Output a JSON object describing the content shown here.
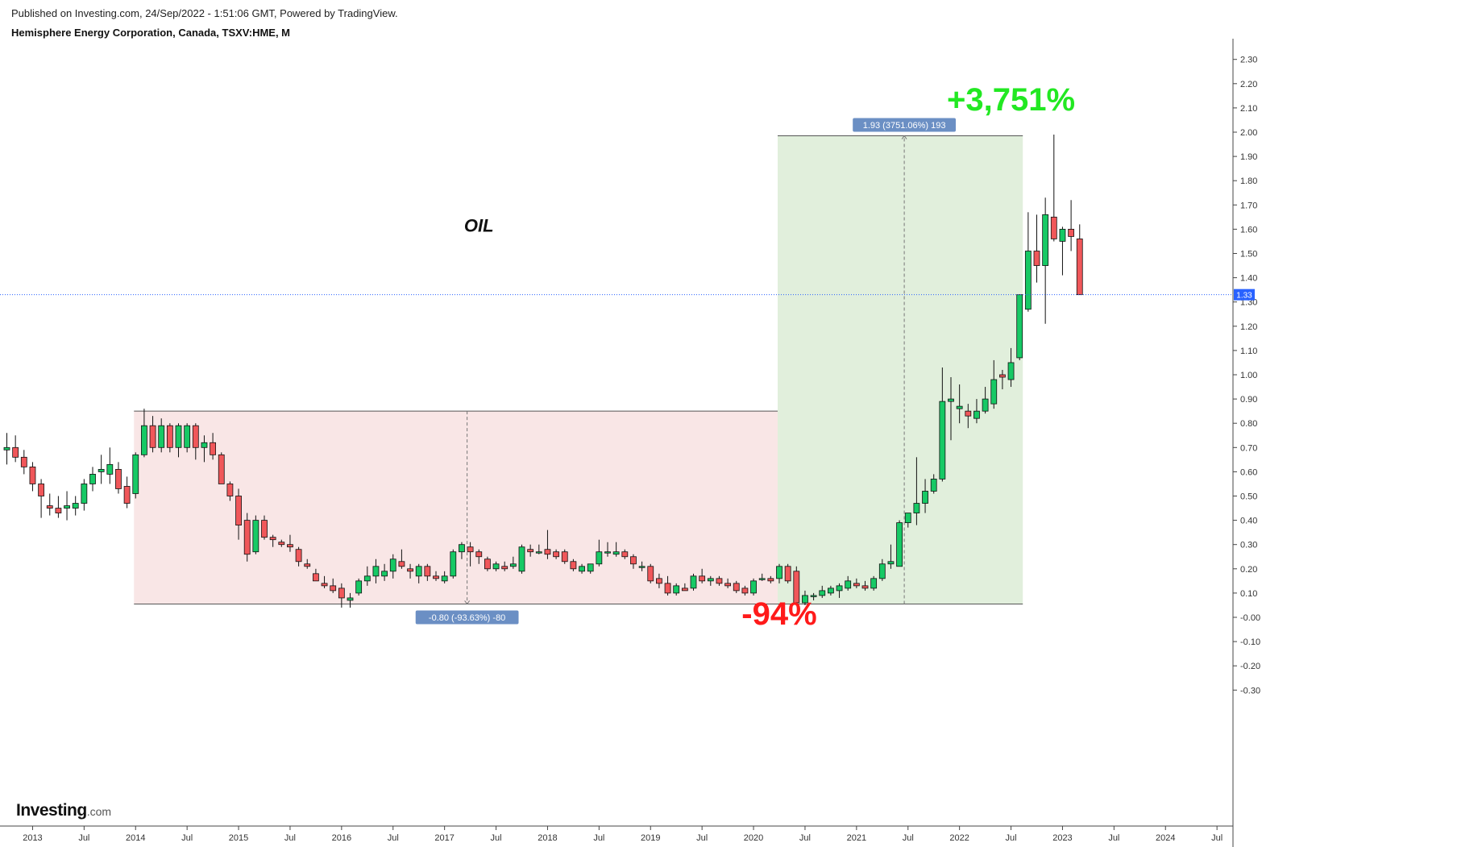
{
  "header": {
    "published": "Published on Investing.com, 24/Sep/2022 - 1:51:06 GMT, Powered by TradingView.",
    "symbol": "Hemisphere Energy Corporation, Canada, TSXV:HME, M"
  },
  "logo": {
    "main": "Investing",
    "suffix": ".com"
  },
  "chart_data": {
    "type": "candlestick",
    "x_axis": {
      "unit": "month",
      "start": "2012-10",
      "ticks": [
        "2013",
        "Jul",
        "2014",
        "Jul",
        "2015",
        "Jul",
        "2016",
        "Jul",
        "2017",
        "Jul",
        "2018",
        "Jul",
        "2019",
        "Jul",
        "2020",
        "Jul",
        "2021",
        "Jul",
        "2022",
        "Jul",
        "2023",
        "Jul",
        "2024",
        "Jul"
      ]
    },
    "y_axis": {
      "ylim": [
        -0.35,
        2.35
      ],
      "ticks": [
        "2.30",
        "2.20",
        "2.10",
        "2.00",
        "1.90",
        "1.80",
        "1.70",
        "1.60",
        "1.50",
        "1.40",
        "1.30",
        "1.20",
        "1.10",
        "1.00",
        "0.90",
        "0.80",
        "0.70",
        "0.60",
        "0.50",
        "0.40",
        "0.30",
        "0.20",
        "0.10",
        "-0.00",
        "-0.10",
        "-0.20",
        "-0.30"
      ]
    },
    "last_price": {
      "value": 1.33,
      "label": "1.33",
      "color": "#2962ff"
    },
    "colors": {
      "up": "#17c965",
      "down": "#f0575a",
      "decline_zone": "#f9e6e6",
      "rise_zone": "#e1efdc",
      "plus_text": "#22e822",
      "minus_text": "#ff1a1a",
      "measure_label_bg": "#6b8fc4"
    },
    "measurements": [
      {
        "label": "-0.80 (-93.63%) -80",
        "from_date": "2014-01",
        "to_date": "2020-04",
        "from_price": 0.85,
        "to_price": 0.055,
        "zone": "decline"
      },
      {
        "label": "1.93 (3751.06%) 193",
        "from_date": "2020-04",
        "to_date": "2022-08",
        "from_price": 0.055,
        "to_price": 1.985,
        "zone": "rise"
      }
    ],
    "annotations": [
      {
        "text": "OIL",
        "x_date": "2017-05",
        "y": 1.59
      },
      {
        "text": "+3,751%",
        "x_date": "2022-07",
        "y": 2.09
      },
      {
        "text": "-94%",
        "x_date": "2020-04",
        "y": -0.03
      }
    ],
    "candles": [
      [
        "2012-10",
        0.69,
        0.76,
        0.63,
        0.7
      ],
      [
        "2012-11",
        0.7,
        0.75,
        0.64,
        0.66
      ],
      [
        "2012-12",
        0.66,
        0.69,
        0.59,
        0.62
      ],
      [
        "2013-01",
        0.62,
        0.64,
        0.52,
        0.55
      ],
      [
        "2013-02",
        0.55,
        0.57,
        0.41,
        0.5
      ],
      [
        "2013-03",
        0.46,
        0.51,
        0.42,
        0.45
      ],
      [
        "2013-04",
        0.45,
        0.5,
        0.41,
        0.43
      ],
      [
        "2013-05",
        0.45,
        0.52,
        0.4,
        0.46
      ],
      [
        "2013-06",
        0.45,
        0.5,
        0.42,
        0.47
      ],
      [
        "2013-07",
        0.47,
        0.57,
        0.44,
        0.55
      ],
      [
        "2013-08",
        0.55,
        0.62,
        0.52,
        0.59
      ],
      [
        "2013-09",
        0.6,
        0.67,
        0.55,
        0.61
      ],
      [
        "2013-10",
        0.59,
        0.7,
        0.55,
        0.63
      ],
      [
        "2013-11",
        0.61,
        0.64,
        0.51,
        0.53
      ],
      [
        "2013-12",
        0.54,
        0.58,
        0.45,
        0.47
      ],
      [
        "2014-01",
        0.51,
        0.68,
        0.49,
        0.67
      ],
      [
        "2014-02",
        0.67,
        0.86,
        0.66,
        0.79
      ],
      [
        "2014-03",
        0.79,
        0.83,
        0.68,
        0.7
      ],
      [
        "2014-04",
        0.7,
        0.82,
        0.68,
        0.79
      ],
      [
        "2014-05",
        0.79,
        0.8,
        0.68,
        0.7
      ],
      [
        "2014-06",
        0.7,
        0.8,
        0.66,
        0.79
      ],
      [
        "2014-07",
        0.7,
        0.8,
        0.68,
        0.79
      ],
      [
        "2014-08",
        0.79,
        0.8,
        0.65,
        0.7
      ],
      [
        "2014-09",
        0.7,
        0.75,
        0.64,
        0.72
      ],
      [
        "2014-10",
        0.72,
        0.76,
        0.65,
        0.67
      ],
      [
        "2014-11",
        0.67,
        0.68,
        0.55,
        0.55
      ],
      [
        "2014-12",
        0.55,
        0.56,
        0.48,
        0.5
      ],
      [
        "2015-01",
        0.5,
        0.53,
        0.32,
        0.38
      ],
      [
        "2015-02",
        0.4,
        0.43,
        0.23,
        0.26
      ],
      [
        "2015-03",
        0.27,
        0.42,
        0.26,
        0.4
      ],
      [
        "2015-04",
        0.4,
        0.42,
        0.32,
        0.33
      ],
      [
        "2015-05",
        0.33,
        0.34,
        0.29,
        0.32
      ],
      [
        "2015-06",
        0.31,
        0.32,
        0.29,
        0.3
      ],
      [
        "2015-07",
        0.3,
        0.34,
        0.27,
        0.29
      ],
      [
        "2015-08",
        0.28,
        0.29,
        0.21,
        0.23
      ],
      [
        "2015-09",
        0.22,
        0.24,
        0.2,
        0.21
      ],
      [
        "2015-10",
        0.18,
        0.2,
        0.15,
        0.15
      ],
      [
        "2015-11",
        0.14,
        0.17,
        0.12,
        0.13
      ],
      [
        "2015-12",
        0.13,
        0.16,
        0.1,
        0.11
      ],
      [
        "2016-01",
        0.12,
        0.14,
        0.04,
        0.08
      ],
      [
        "2016-02",
        0.07,
        0.1,
        0.04,
        0.08
      ],
      [
        "2016-03",
        0.1,
        0.16,
        0.09,
        0.15
      ],
      [
        "2016-04",
        0.15,
        0.21,
        0.13,
        0.17
      ],
      [
        "2016-05",
        0.17,
        0.24,
        0.14,
        0.21
      ],
      [
        "2016-06",
        0.17,
        0.22,
        0.15,
        0.19
      ],
      [
        "2016-07",
        0.19,
        0.26,
        0.16,
        0.24
      ],
      [
        "2016-08",
        0.23,
        0.28,
        0.2,
        0.21
      ],
      [
        "2016-09",
        0.2,
        0.22,
        0.16,
        0.19
      ],
      [
        "2016-10",
        0.17,
        0.22,
        0.14,
        0.21
      ],
      [
        "2016-11",
        0.21,
        0.22,
        0.15,
        0.17
      ],
      [
        "2016-12",
        0.17,
        0.19,
        0.15,
        0.16
      ],
      [
        "2017-01",
        0.15,
        0.19,
        0.14,
        0.17
      ],
      [
        "2017-02",
        0.17,
        0.28,
        0.16,
        0.27
      ],
      [
        "2017-03",
        0.27,
        0.31,
        0.24,
        0.3
      ],
      [
        "2017-04",
        0.29,
        0.31,
        0.21,
        0.27
      ],
      [
        "2017-05",
        0.27,
        0.28,
        0.22,
        0.25
      ],
      [
        "2017-06",
        0.24,
        0.25,
        0.19,
        0.2
      ],
      [
        "2017-07",
        0.2,
        0.23,
        0.19,
        0.22
      ],
      [
        "2017-08",
        0.21,
        0.23,
        0.19,
        0.2
      ],
      [
        "2017-09",
        0.21,
        0.25,
        0.2,
        0.22
      ],
      [
        "2017-10",
        0.19,
        0.3,
        0.18,
        0.29
      ],
      [
        "2017-11",
        0.28,
        0.3,
        0.25,
        0.27
      ],
      [
        "2017-12",
        0.27,
        0.3,
        0.26,
        0.27
      ],
      [
        "2018-01",
        0.28,
        0.36,
        0.24,
        0.26
      ],
      [
        "2018-02",
        0.27,
        0.28,
        0.24,
        0.25
      ],
      [
        "2018-03",
        0.27,
        0.28,
        0.22,
        0.23
      ],
      [
        "2018-04",
        0.23,
        0.24,
        0.19,
        0.2
      ],
      [
        "2018-05",
        0.19,
        0.22,
        0.18,
        0.21
      ],
      [
        "2018-06",
        0.19,
        0.22,
        0.18,
        0.22
      ],
      [
        "2018-07",
        0.22,
        0.32,
        0.21,
        0.27
      ],
      [
        "2018-08",
        0.27,
        0.31,
        0.25,
        0.27
      ],
      [
        "2018-09",
        0.26,
        0.31,
        0.25,
        0.27
      ],
      [
        "2018-10",
        0.27,
        0.28,
        0.24,
        0.25
      ],
      [
        "2018-11",
        0.25,
        0.26,
        0.2,
        0.22
      ],
      [
        "2018-12",
        0.21,
        0.23,
        0.19,
        0.21
      ],
      [
        "2019-01",
        0.21,
        0.22,
        0.14,
        0.15
      ],
      [
        "2019-02",
        0.16,
        0.18,
        0.12,
        0.14
      ],
      [
        "2019-03",
        0.14,
        0.17,
        0.09,
        0.1
      ],
      [
        "2019-04",
        0.1,
        0.14,
        0.09,
        0.13
      ],
      [
        "2019-05",
        0.12,
        0.14,
        0.11,
        0.11
      ],
      [
        "2019-06",
        0.12,
        0.18,
        0.11,
        0.17
      ],
      [
        "2019-07",
        0.17,
        0.2,
        0.14,
        0.15
      ],
      [
        "2019-08",
        0.15,
        0.17,
        0.13,
        0.16
      ],
      [
        "2019-09",
        0.16,
        0.17,
        0.13,
        0.14
      ],
      [
        "2019-10",
        0.14,
        0.16,
        0.12,
        0.13
      ],
      [
        "2019-11",
        0.14,
        0.15,
        0.1,
        0.11
      ],
      [
        "2019-12",
        0.12,
        0.13,
        0.09,
        0.1
      ],
      [
        "2020-01",
        0.1,
        0.16,
        0.09,
        0.15
      ],
      [
        "2020-02",
        0.16,
        0.18,
        0.15,
        0.16
      ],
      [
        "2020-03",
        0.16,
        0.17,
        0.14,
        0.15
      ],
      [
        "2020-04",
        0.16,
        0.22,
        0.14,
        0.21
      ],
      [
        "2020-05",
        0.21,
        0.22,
        0.14,
        0.15
      ],
      [
        "2020-06",
        0.19,
        0.21,
        0.05,
        0.06
      ],
      [
        "2020-07",
        0.06,
        0.11,
        0.05,
        0.09
      ],
      [
        "2020-08",
        0.09,
        0.1,
        0.07,
        0.09
      ],
      [
        "2020-09",
        0.09,
        0.13,
        0.08,
        0.11
      ],
      [
        "2020-10",
        0.1,
        0.13,
        0.09,
        0.12
      ],
      [
        "2020-11",
        0.11,
        0.14,
        0.08,
        0.13
      ],
      [
        "2020-12",
        0.12,
        0.17,
        0.11,
        0.15
      ],
      [
        "2021-01",
        0.14,
        0.16,
        0.12,
        0.13
      ],
      [
        "2021-02",
        0.13,
        0.15,
        0.11,
        0.12
      ],
      [
        "2021-03",
        0.12,
        0.17,
        0.11,
        0.16
      ],
      [
        "2021-04",
        0.16,
        0.24,
        0.15,
        0.22
      ],
      [
        "2021-05",
        0.22,
        0.3,
        0.2,
        0.23
      ],
      [
        "2021-06",
        0.21,
        0.4,
        0.21,
        0.39
      ],
      [
        "2021-07",
        0.39,
        0.43,
        0.37,
        0.43
      ],
      [
        "2021-08",
        0.43,
        0.66,
        0.38,
        0.47
      ],
      [
        "2021-09",
        0.47,
        0.57,
        0.43,
        0.52
      ],
      [
        "2021-10",
        0.52,
        0.59,
        0.51,
        0.57
      ],
      [
        "2021-11",
        0.57,
        1.03,
        0.56,
        0.89
      ],
      [
        "2021-12",
        0.89,
        0.99,
        0.73,
        0.9
      ],
      [
        "2022-01",
        0.86,
        0.96,
        0.8,
        0.87
      ],
      [
        "2022-02",
        0.85,
        0.88,
        0.78,
        0.83
      ],
      [
        "2022-03",
        0.82,
        0.9,
        0.8,
        0.85
      ],
      [
        "2022-04",
        0.85,
        0.95,
        0.84,
        0.9
      ],
      [
        "2022-05",
        0.88,
        1.06,
        0.86,
        0.98
      ],
      [
        "2022-06",
        1.0,
        1.02,
        0.94,
        0.99
      ],
      [
        "2022-07",
        0.98,
        1.11,
        0.95,
        1.05
      ],
      [
        "2022-08",
        1.07,
        1.33,
        1.06,
        1.33
      ],
      [
        "2022-09",
        1.27,
        1.67,
        1.26,
        1.51
      ],
      [
        "2022-10",
        1.51,
        1.66,
        1.38,
        1.45
      ],
      [
        "2022-11",
        1.45,
        1.73,
        1.21,
        1.66
      ],
      [
        "2022-12",
        1.65,
        1.99,
        1.55,
        1.56
      ],
      [
        "2023-01",
        1.55,
        1.61,
        1.41,
        1.6
      ],
      [
        "2023-02",
        1.6,
        1.72,
        1.51,
        1.57
      ],
      [
        "2023-03",
        1.56,
        1.62,
        1.33,
        1.33
      ]
    ]
  }
}
